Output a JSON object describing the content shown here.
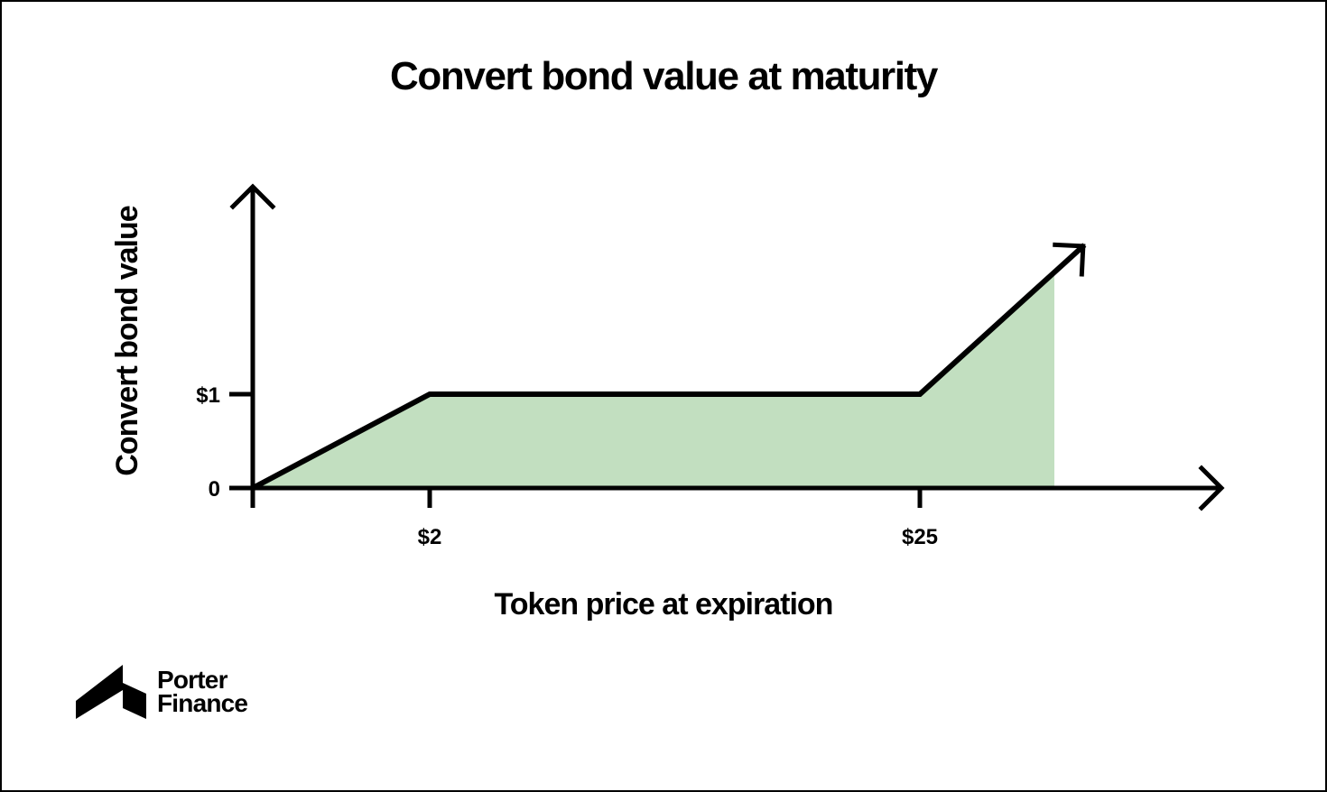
{
  "chart_data": {
    "type": "area",
    "title": "Convert bond value at maturity",
    "xlabel": "Token price at expiration",
    "ylabel": "Convert bond value",
    "x_ticks": [
      {
        "value": 2,
        "label": "$2"
      },
      {
        "value": 25,
        "label": "$25"
      }
    ],
    "y_ticks": [
      {
        "value": 0,
        "label": "0"
      },
      {
        "value": 1,
        "label": "$1"
      }
    ],
    "series": [
      {
        "x": [
          0,
          2,
          25,
          28.5
        ],
        "y": [
          0,
          1,
          1,
          2.3
        ]
      }
    ],
    "continues_beyond_last_point": true,
    "grid": false,
    "legend": "none",
    "colors": {
      "fill": "#c2dfc0",
      "line": "#000000",
      "axis": "#000000"
    }
  },
  "brand": {
    "logo_icon": "porter-finance-logo-icon",
    "name_line1": "Porter",
    "name_line2": "Finance"
  }
}
